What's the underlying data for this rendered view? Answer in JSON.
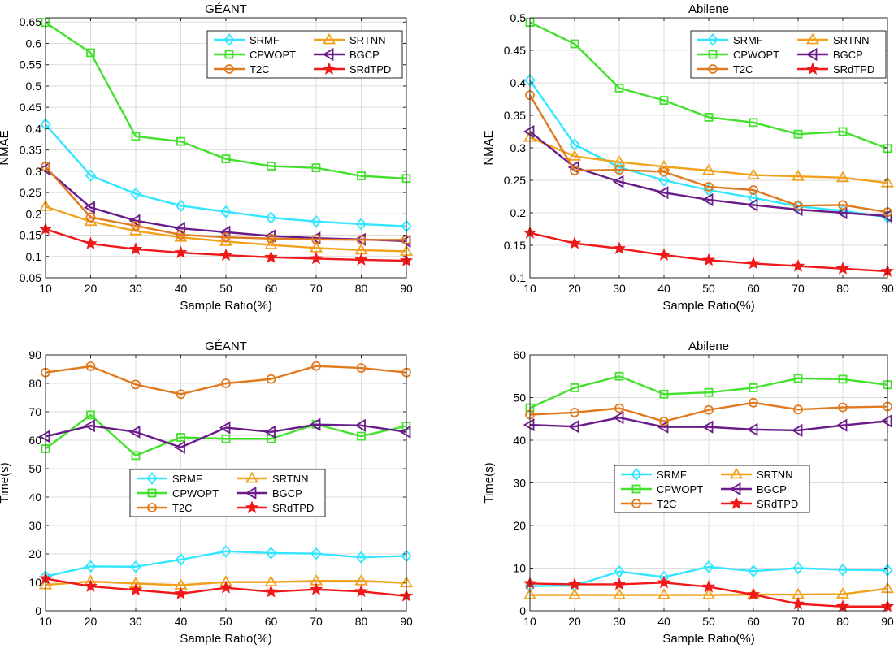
{
  "colors": {
    "SRMF": "#33e6ff",
    "SRTNN": "#f2a11c",
    "CPWOPT": "#44e02e",
    "BGCP": "#6a1b8a",
    "T2C": "#e07a1f",
    "SRdTPD": "#f01818"
  },
  "chart_data": [
    {
      "type": "line",
      "title": "GÉANT",
      "xlabel": "Sample Ratio(%)",
      "ylabel": "NMAE",
      "x": [
        10,
        20,
        30,
        40,
        50,
        60,
        70,
        80,
        90
      ],
      "xlim": [
        10,
        90
      ],
      "ylim": [
        0.05,
        0.66
      ],
      "yticks": [
        0.05,
        0.1,
        0.15,
        0.2,
        0.25,
        0.3,
        0.35,
        0.4,
        0.45,
        0.5,
        0.55,
        0.6,
        0.65
      ],
      "ytick_labels": [
        "0.05",
        "0.1",
        "0.15",
        "0.2",
        "0.25",
        "0.3",
        "0.35",
        "0.4",
        "0.45",
        "0.5",
        "0.55",
        "0.6",
        "0.65"
      ],
      "grid": true,
      "legend": "top-right",
      "series": [
        {
          "name": "SRMF",
          "marker": "diamond",
          "values": [
            0.41,
            0.29,
            0.247,
            0.219,
            0.205,
            0.191,
            0.182,
            0.176,
            0.171
          ]
        },
        {
          "name": "SRTNN",
          "marker": "triangle-up",
          "values": [
            0.217,
            0.182,
            0.16,
            0.145,
            0.135,
            0.127,
            0.12,
            0.115,
            0.112
          ]
        },
        {
          "name": "CPWOPT",
          "marker": "square",
          "values": [
            0.649,
            0.578,
            0.382,
            0.37,
            0.329,
            0.312,
            0.308,
            0.289,
            0.283
          ]
        },
        {
          "name": "BGCP",
          "marker": "triangle-left",
          "values": [
            0.306,
            0.215,
            0.184,
            0.166,
            0.157,
            0.148,
            0.143,
            0.14,
            0.136
          ]
        },
        {
          "name": "T2C",
          "marker": "circle",
          "values": [
            0.311,
            0.192,
            0.172,
            0.151,
            0.145,
            0.142,
            0.14,
            0.139,
            0.139
          ]
        },
        {
          "name": "SRdTPD",
          "marker": "star",
          "values": [
            0.164,
            0.13,
            0.117,
            0.109,
            0.103,
            0.098,
            0.095,
            0.092,
            0.09
          ]
        }
      ]
    },
    {
      "type": "line",
      "title": "Abilene",
      "xlabel": "Sample Ratio(%)",
      "ylabel": "NMAE",
      "x": [
        10,
        20,
        30,
        40,
        50,
        60,
        70,
        80,
        90
      ],
      "xlim": [
        10,
        90
      ],
      "ylim": [
        0.1,
        0.5
      ],
      "yticks": [
        0.1,
        0.15,
        0.2,
        0.25,
        0.3,
        0.35,
        0.4,
        0.45,
        0.5
      ],
      "ytick_labels": [
        "0.1",
        "0.15",
        "0.2",
        "0.25",
        "0.3",
        "0.35",
        "0.4",
        "0.45",
        "0.5"
      ],
      "grid": true,
      "legend": "top-right",
      "series": [
        {
          "name": "SRMF",
          "marker": "diamond",
          "values": [
            0.404,
            0.305,
            0.27,
            0.25,
            0.235,
            0.223,
            0.21,
            0.203,
            0.193
          ]
        },
        {
          "name": "SRTNN",
          "marker": "triangle-up",
          "values": [
            0.316,
            0.287,
            0.278,
            0.271,
            0.265,
            0.258,
            0.256,
            0.254,
            0.246
          ]
        },
        {
          "name": "CPWOPT",
          "marker": "square",
          "values": [
            0.493,
            0.46,
            0.392,
            0.373,
            0.347,
            0.339,
            0.321,
            0.325,
            0.299
          ]
        },
        {
          "name": "BGCP",
          "marker": "triangle-left",
          "values": [
            0.325,
            0.27,
            0.248,
            0.231,
            0.22,
            0.212,
            0.205,
            0.2,
            0.195
          ]
        },
        {
          "name": "T2C",
          "marker": "circle",
          "values": [
            0.381,
            0.265,
            0.266,
            0.263,
            0.24,
            0.235,
            0.211,
            0.212,
            0.201
          ]
        },
        {
          "name": "SRdTPD",
          "marker": "star",
          "values": [
            0.169,
            0.153,
            0.145,
            0.135,
            0.127,
            0.122,
            0.118,
            0.114,
            0.11
          ]
        }
      ]
    },
    {
      "type": "line",
      "title": "GÉANT",
      "xlabel": "Sample Ratio(%)",
      "ylabel": "Time(s)",
      "x": [
        10,
        20,
        30,
        40,
        50,
        60,
        70,
        80,
        90
      ],
      "xlim": [
        10,
        90
      ],
      "ylim": [
        0,
        90
      ],
      "yticks": [
        0,
        10,
        20,
        30,
        40,
        50,
        60,
        70,
        80,
        90
      ],
      "ytick_labels": [
        "0",
        "10",
        "20",
        "30",
        "40",
        "50",
        "60",
        "70",
        "80",
        "90"
      ],
      "grid": true,
      "legend": "center-left",
      "series": [
        {
          "name": "SRMF",
          "marker": "diamond",
          "values": [
            12.1,
            15.6,
            15.5,
            18.0,
            20.9,
            20.3,
            20.1,
            18.8,
            19.3
          ]
        },
        {
          "name": "SRTNN",
          "marker": "triangle-up",
          "values": [
            9.1,
            10.3,
            9.6,
            9.0,
            10.1,
            10.1,
            10.5,
            10.5,
            9.8
          ]
        },
        {
          "name": "CPWOPT",
          "marker": "square",
          "values": [
            57.0,
            68.9,
            54.6,
            61.0,
            60.5,
            60.5,
            65.6,
            61.4,
            65.0
          ]
        },
        {
          "name": "BGCP",
          "marker": "triangle-left",
          "values": [
            61.3,
            65.1,
            62.9,
            57.5,
            64.4,
            62.9,
            65.5,
            65.2,
            62.9
          ]
        },
        {
          "name": "T2C",
          "marker": "circle",
          "values": [
            83.8,
            86.0,
            79.6,
            76.2,
            80.0,
            81.5,
            86.1,
            85.4,
            83.8
          ]
        },
        {
          "name": "SRdTPD",
          "marker": "star",
          "values": [
            11.3,
            8.6,
            7.3,
            6.0,
            8.1,
            6.7,
            7.5,
            6.8,
            5.2
          ]
        }
      ]
    },
    {
      "type": "line",
      "title": "Abilene",
      "xlabel": "Sample Ratio(%)",
      "ylabel": "Time(s)",
      "x": [
        10,
        20,
        30,
        40,
        50,
        60,
        70,
        80,
        90
      ],
      "xlim": [
        10,
        90
      ],
      "ylim": [
        0,
        60
      ],
      "yticks": [
        0,
        10,
        20,
        30,
        40,
        50,
        60
      ],
      "ytick_labels": [
        "0",
        "10",
        "20",
        "30",
        "40",
        "50",
        "60"
      ],
      "grid": true,
      "legend": "center-left",
      "series": [
        {
          "name": "SRMF",
          "marker": "diamond",
          "values": [
            5.8,
            5.9,
            9.2,
            7.9,
            10.3,
            9.3,
            10.0,
            9.6,
            9.5
          ]
        },
        {
          "name": "SRTNN",
          "marker": "triangle-up",
          "values": [
            3.7,
            3.7,
            3.7,
            3.7,
            3.7,
            3.8,
            3.8,
            3.9,
            5.2
          ]
        },
        {
          "name": "CPWOPT",
          "marker": "square",
          "values": [
            47.6,
            52.3,
            55.0,
            50.8,
            51.2,
            52.3,
            54.5,
            54.3,
            53.0
          ]
        },
        {
          "name": "BGCP",
          "marker": "triangle-left",
          "values": [
            43.6,
            43.2,
            45.3,
            43.1,
            43.1,
            42.5,
            42.3,
            43.5,
            44.5
          ]
        },
        {
          "name": "T2C",
          "marker": "circle",
          "values": [
            46.0,
            46.5,
            47.5,
            44.4,
            47.1,
            48.8,
            47.2,
            47.7,
            47.9
          ]
        },
        {
          "name": "SRdTPD",
          "marker": "star",
          "values": [
            6.4,
            6.2,
            6.2,
            6.6,
            5.6,
            3.8,
            1.6,
            1.0,
            1.0
          ]
        }
      ]
    }
  ]
}
